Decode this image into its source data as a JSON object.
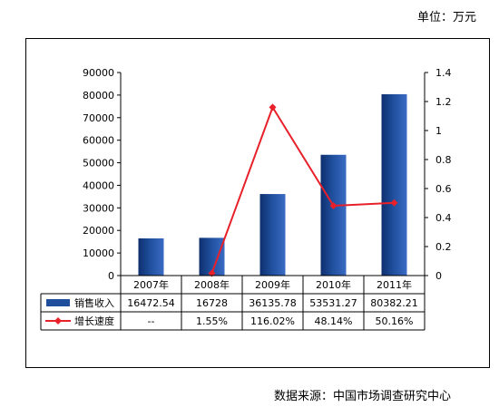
{
  "header": {
    "unit_label": "单位：万元"
  },
  "footer": {
    "source_label": "数据来源：中国市场调查研究中心"
  },
  "chart_data": {
    "type": "bar",
    "categories": [
      "2007年",
      "2008年",
      "2009年",
      "2010年",
      "2011年"
    ],
    "series": [
      {
        "name": "销售收入",
        "type": "bar",
        "axis": "left",
        "color": "#1f4e9c",
        "values": [
          16472.54,
          16728,
          36135.78,
          53531.27,
          80382.21
        ],
        "labels": [
          "16472.54",
          "16728",
          "36135.78",
          "53531.27",
          "80382.21"
        ]
      },
      {
        "name": "增长速度",
        "type": "line",
        "axis": "right",
        "color": "#e8202a",
        "values": [
          null,
          0.0155,
          1.1602,
          0.4814,
          0.5016
        ],
        "labels": [
          "--",
          "1.55%",
          "116.02%",
          "48.14%",
          "50.16%"
        ]
      }
    ],
    "y_left": {
      "ylim": [
        0,
        90000
      ],
      "ticks": [
        0,
        10000,
        20000,
        30000,
        40000,
        50000,
        60000,
        70000,
        80000,
        90000
      ]
    },
    "y_right": {
      "ylim": [
        0,
        1.4
      ],
      "ticks": [
        "0",
        "0.2",
        "0.4",
        "0.6",
        "0.8",
        "1",
        "1.2",
        "1.4"
      ]
    },
    "grid": false,
    "legend": "data-table"
  }
}
